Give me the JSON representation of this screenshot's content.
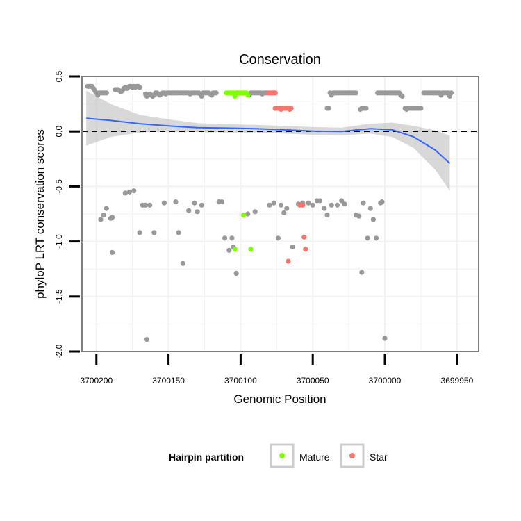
{
  "chart_data": {
    "type": "scatter",
    "title": "Conservation",
    "xlabel": "Genomic Position",
    "ylabel": "phyloP LRT conservation scores",
    "xlim": [
      3700210,
      3699935
    ],
    "ylim": [
      -2.0,
      0.5
    ],
    "x_reversed": true,
    "x_ticks": [
      3700200,
      3700150,
      3700100,
      3700050,
      3700000,
      3699950
    ],
    "x_tick_labels": [
      "3700200",
      "3700150",
      "3700100",
      "3700050",
      "3700000",
      "3699950"
    ],
    "y_ticks": [
      0.5,
      0.0,
      -0.5,
      -1.0,
      -1.5,
      -2.0
    ],
    "y_tick_labels": [
      "0.5",
      "0.0",
      "-0.5",
      "-1.0",
      "-1.5",
      "-2.0"
    ],
    "grid": true,
    "reference_line": {
      "y": 0,
      "style": "dashed",
      "color": "#000000"
    },
    "legend": {
      "title": "Hairpin partition",
      "position": "bottom",
      "entries": [
        {
          "label": "Mature",
          "color": "#80ff00"
        },
        {
          "label": "Star",
          "color": "#f8766d"
        }
      ]
    },
    "smooth": {
      "color": "#3366ff",
      "band_color": "#bebebe",
      "x": [
        3700207,
        3700190,
        3700170,
        3700150,
        3700130,
        3700110,
        3700090,
        3700070,
        3700050,
        3700030,
        3700010,
        3699995,
        3699980,
        3699965,
        3699955
      ],
      "y": [
        0.12,
        0.1,
        0.07,
        0.05,
        0.035,
        0.03,
        0.025,
        0.015,
        0.003,
        0.0,
        0.025,
        0.015,
        -0.05,
        -0.17,
        -0.29
      ],
      "lower": [
        -0.13,
        -0.05,
        -0.01,
        0.0,
        -0.005,
        -0.01,
        -0.01,
        -0.02,
        -0.03,
        -0.035,
        -0.02,
        -0.05,
        -0.15,
        -0.35,
        -0.54
      ],
      "upper": [
        0.37,
        0.25,
        0.15,
        0.11,
        0.075,
        0.065,
        0.06,
        0.05,
        0.04,
        0.035,
        0.07,
        0.08,
        0.05,
        0.01,
        -0.04
      ]
    },
    "series": [
      {
        "name": "",
        "color": "#999999",
        "points": [
          [
            3700206,
            0.41
          ],
          [
            3700205,
            0.41
          ],
          [
            3700204,
            0.41
          ],
          [
            3700203,
            0.41
          ],
          [
            3700202,
            0.39
          ],
          [
            3700201,
            0.37
          ],
          [
            3700200,
            0.35
          ],
          [
            3700199,
            0.33
          ],
          [
            3700198,
            0.35
          ],
          [
            3700197,
            0.35
          ],
          [
            3700196,
            0.35
          ],
          [
            3700195,
            0.35
          ],
          [
            3700194,
            0.35
          ],
          [
            3700193,
            0.35
          ],
          [
            3700187,
            0.38
          ],
          [
            3700186,
            0.38
          ],
          [
            3700185,
            0.38
          ],
          [
            3700184,
            0.37
          ],
          [
            3700183,
            0.36
          ],
          [
            3700182,
            0.37
          ],
          [
            3700181,
            0.39
          ],
          [
            3700180,
            0.4
          ],
          [
            3700179,
            0.39
          ],
          [
            3700178,
            0.4
          ],
          [
            3700177,
            0.41
          ],
          [
            3700176,
            0.41
          ],
          [
            3700175,
            0.4
          ],
          [
            3700174,
            0.41
          ],
          [
            3700173,
            0.4
          ],
          [
            3700172,
            0.41
          ],
          [
            3700171,
            0.41
          ],
          [
            3700170,
            0.4
          ],
          [
            3700166,
            0.34
          ],
          [
            3700165,
            0.32
          ],
          [
            3700164,
            0.33
          ],
          [
            3700163,
            0.34
          ],
          [
            3700162,
            0.33
          ],
          [
            3700161,
            0.32
          ],
          [
            3700160,
            0.33
          ],
          [
            3700159,
            0.35
          ],
          [
            3700158,
            0.35
          ],
          [
            3700157,
            0.34
          ],
          [
            3700156,
            0.33
          ],
          [
            3700155,
            0.34
          ],
          [
            3700154,
            0.35
          ],
          [
            3700153,
            0.35
          ],
          [
            3700152,
            0.34
          ],
          [
            3700151,
            0.35
          ],
          [
            3700150,
            0.35
          ],
          [
            3700149,
            0.35
          ],
          [
            3700148,
            0.35
          ],
          [
            3700147,
            0.35
          ],
          [
            3700146,
            0.35
          ],
          [
            3700145,
            0.35
          ],
          [
            3700144,
            0.35
          ],
          [
            3700143,
            0.35
          ],
          [
            3700142,
            0.35
          ],
          [
            3700141,
            0.35
          ],
          [
            3700140,
            0.35
          ],
          [
            3700139,
            0.35
          ],
          [
            3700138,
            0.35
          ],
          [
            3700137,
            0.35
          ],
          [
            3700136,
            0.35
          ],
          [
            3700135,
            0.34
          ],
          [
            3700134,
            0.35
          ],
          [
            3700133,
            0.35
          ],
          [
            3700132,
            0.35
          ],
          [
            3700131,
            0.35
          ],
          [
            3700130,
            0.35
          ],
          [
            3700129,
            0.35
          ],
          [
            3700128,
            0.34
          ],
          [
            3700127,
            0.32
          ],
          [
            3700126,
            0.35
          ],
          [
            3700125,
            0.35
          ],
          [
            3700124,
            0.35
          ],
          [
            3700123,
            0.35
          ],
          [
            3700122,
            0.35
          ],
          [
            3700121,
            0.34
          ],
          [
            3700120,
            0.33
          ],
          [
            3700119,
            0.35
          ],
          [
            3700118,
            0.35
          ],
          [
            3700117,
            0.35
          ],
          [
            3700094,
            0.33
          ],
          [
            3700093,
            0.35
          ],
          [
            3700092,
            0.35
          ],
          [
            3700091,
            0.35
          ],
          [
            3700090,
            0.35
          ],
          [
            3700089,
            0.35
          ],
          [
            3700088,
            0.35
          ],
          [
            3700087,
            0.35
          ],
          [
            3700086,
            0.35
          ],
          [
            3700085,
            0.34
          ],
          [
            3700084,
            0.35
          ],
          [
            3700083,
            0.35
          ],
          [
            3700082,
            0.35
          ],
          [
            3700076,
            0.21
          ],
          [
            3700075,
            0.21
          ],
          [
            3700074,
            0.21
          ],
          [
            3700040,
            0.21
          ],
          [
            3700039,
            0.21
          ],
          [
            3700038,
            0.35
          ],
          [
            3700037,
            0.33
          ],
          [
            3700036,
            0.35
          ],
          [
            3700035,
            0.35
          ],
          [
            3700034,
            0.35
          ],
          [
            3700033,
            0.35
          ],
          [
            3700032,
            0.35
          ],
          [
            3700031,
            0.35
          ],
          [
            3700030,
            0.35
          ],
          [
            3700029,
            0.35
          ],
          [
            3700028,
            0.35
          ],
          [
            3700027,
            0.35
          ],
          [
            3700026,
            0.35
          ],
          [
            3700025,
            0.35
          ],
          [
            3700024,
            0.35
          ],
          [
            3700023,
            0.35
          ],
          [
            3700022,
            0.35
          ],
          [
            3700021,
            0.35
          ],
          [
            3700020,
            0.35
          ],
          [
            3700017,
            0.2
          ],
          [
            3700016,
            0.21
          ],
          [
            3700015,
            0.21
          ],
          [
            3700014,
            0.21
          ],
          [
            3700013,
            0.21
          ],
          [
            3700005,
            0.35
          ],
          [
            3700004,
            0.35
          ],
          [
            3700003,
            0.35
          ],
          [
            3700002,
            0.35
          ],
          [
            3700001,
            0.35
          ],
          [
            3700000,
            0.35
          ],
          [
            3699999,
            0.35
          ],
          [
            3699998,
            0.35
          ],
          [
            3699997,
            0.35
          ],
          [
            3699996,
            0.35
          ],
          [
            3699995,
            0.35
          ],
          [
            3699994,
            0.35
          ],
          [
            3699993,
            0.35
          ],
          [
            3699992,
            0.35
          ],
          [
            3699991,
            0.35
          ],
          [
            3699990,
            0.35
          ],
          [
            3699989,
            0.33
          ],
          [
            3699988,
            0.32
          ],
          [
            3699986,
            0.21
          ],
          [
            3699985,
            0.2
          ],
          [
            3699984,
            0.21
          ],
          [
            3699983,
            0.21
          ],
          [
            3699982,
            0.21
          ],
          [
            3699981,
            0.21
          ],
          [
            3699980,
            0.21
          ],
          [
            3699979,
            0.21
          ],
          [
            3699978,
            0.21
          ],
          [
            3699977,
            0.21
          ],
          [
            3699976,
            0.21
          ],
          [
            3699975,
            0.21
          ],
          [
            3699973,
            0.35
          ],
          [
            3699972,
            0.35
          ],
          [
            3699971,
            0.35
          ],
          [
            3699970,
            0.35
          ],
          [
            3699969,
            0.35
          ],
          [
            3699968,
            0.35
          ],
          [
            3699967,
            0.35
          ],
          [
            3699966,
            0.35
          ],
          [
            3699965,
            0.35
          ],
          [
            3699964,
            0.35
          ],
          [
            3699963,
            0.35
          ],
          [
            3699962,
            0.35
          ],
          [
            3699961,
            0.33
          ],
          [
            3699960,
            0.35
          ],
          [
            3699959,
            0.35
          ],
          [
            3699958,
            0.35
          ],
          [
            3699957,
            0.35
          ],
          [
            3699956,
            0.35
          ],
          [
            3699955,
            0.32
          ],
          [
            3699954,
            0.35
          ],
          [
            3700197,
            -0.8
          ],
          [
            3700195,
            -0.76
          ],
          [
            3700193,
            -0.7
          ],
          [
            3700190,
            -0.79
          ],
          [
            3700189,
            -0.78
          ],
          [
            3700189,
            -1.1
          ],
          [
            3700180,
            -0.56
          ],
          [
            3700177,
            -0.55
          ],
          [
            3700174,
            -0.54
          ],
          [
            3700170,
            -0.92
          ],
          [
            3700168,
            -0.67
          ],
          [
            3700166,
            -0.67
          ],
          [
            3700165,
            -1.89
          ],
          [
            3700163,
            -0.67
          ],
          [
            3700160,
            -0.92
          ],
          [
            3700153,
            -0.65
          ],
          [
            3700145,
            -0.64
          ],
          [
            3700143,
            -0.92
          ],
          [
            3700140,
            -1.2
          ],
          [
            3700136,
            -0.72
          ],
          [
            3700132,
            -0.65
          ],
          [
            3700130,
            -0.73
          ],
          [
            3700127,
            -0.67
          ],
          [
            3700115,
            -0.64
          ],
          [
            3700113,
            -0.64
          ],
          [
            3700111,
            -0.97
          ],
          [
            3700108,
            -1.08
          ],
          [
            3700106,
            -0.97
          ],
          [
            3700105,
            -1.05
          ],
          [
            3700103,
            -1.29
          ],
          [
            3700095,
            -0.75
          ],
          [
            3700090,
            -0.73
          ],
          [
            3700080,
            -0.67
          ],
          [
            3700077,
            -0.65
          ],
          [
            3700074,
            -0.97
          ],
          [
            3700072,
            -0.67
          ],
          [
            3700070,
            -0.74
          ],
          [
            3700068,
            -0.7
          ],
          [
            3700064,
            -1.05
          ],
          [
            3700060,
            -0.66
          ],
          [
            3700057,
            -0.65
          ],
          [
            3700053,
            -0.65
          ],
          [
            3700050,
            -0.67
          ],
          [
            3700047,
            -0.63
          ],
          [
            3700045,
            -0.63
          ],
          [
            3700042,
            -0.7
          ],
          [
            3700040,
            -0.76
          ],
          [
            3700037,
            -0.67
          ],
          [
            3700033,
            -0.67
          ],
          [
            3700030,
            -0.63
          ],
          [
            3700028,
            -0.66
          ],
          [
            3700020,
            -0.76
          ],
          [
            3700018,
            -0.77
          ],
          [
            3700016,
            -1.28
          ],
          [
            3700015,
            -0.65
          ],
          [
            3700012,
            -0.97
          ],
          [
            3700010,
            -0.7
          ],
          [
            3700008,
            -0.8
          ],
          [
            3700006,
            -0.97
          ],
          [
            3700003,
            -0.65
          ],
          [
            3700002,
            -0.64
          ],
          [
            3700000,
            -1.88
          ]
        ]
      },
      {
        "name": "Mature",
        "color": "#80ff00",
        "points": [
          [
            3700110,
            0.35
          ],
          [
            3700109,
            0.35
          ],
          [
            3700108,
            0.35
          ],
          [
            3700107,
            0.35
          ],
          [
            3700106,
            0.35
          ],
          [
            3700105,
            0.35
          ],
          [
            3700104,
            0.32
          ],
          [
            3700103,
            0.35
          ],
          [
            3700102,
            0.35
          ],
          [
            3700101,
            0.35
          ],
          [
            3700100,
            0.35
          ],
          [
            3700099,
            0.35
          ],
          [
            3700098,
            0.35
          ],
          [
            3700097,
            0.35
          ],
          [
            3700096,
            0.35
          ],
          [
            3700095,
            0.33
          ],
          [
            3700104,
            -1.07
          ],
          [
            3700098,
            -0.76
          ],
          [
            3700093,
            -1.07
          ]
        ]
      },
      {
        "name": "Star",
        "color": "#f8766d",
        "points": [
          [
            3700081,
            0.35
          ],
          [
            3700080,
            0.35
          ],
          [
            3700079,
            0.35
          ],
          [
            3700078,
            0.35
          ],
          [
            3700077,
            0.35
          ],
          [
            3700076,
            0.35
          ],
          [
            3700076,
            0.21
          ],
          [
            3700073,
            0.21
          ],
          [
            3700072,
            0.2
          ],
          [
            3700071,
            0.21
          ],
          [
            3700070,
            0.21
          ],
          [
            3700069,
            0.21
          ],
          [
            3700068,
            0.21
          ],
          [
            3700067,
            0.21
          ],
          [
            3700066,
            0.2
          ],
          [
            3700065,
            0.21
          ],
          [
            3700067,
            -1.18
          ],
          [
            3700059,
            -0.67
          ],
          [
            3700057,
            -0.67
          ],
          [
            3700056,
            -0.96
          ],
          [
            3700055,
            -1.07
          ]
        ]
      }
    ]
  }
}
